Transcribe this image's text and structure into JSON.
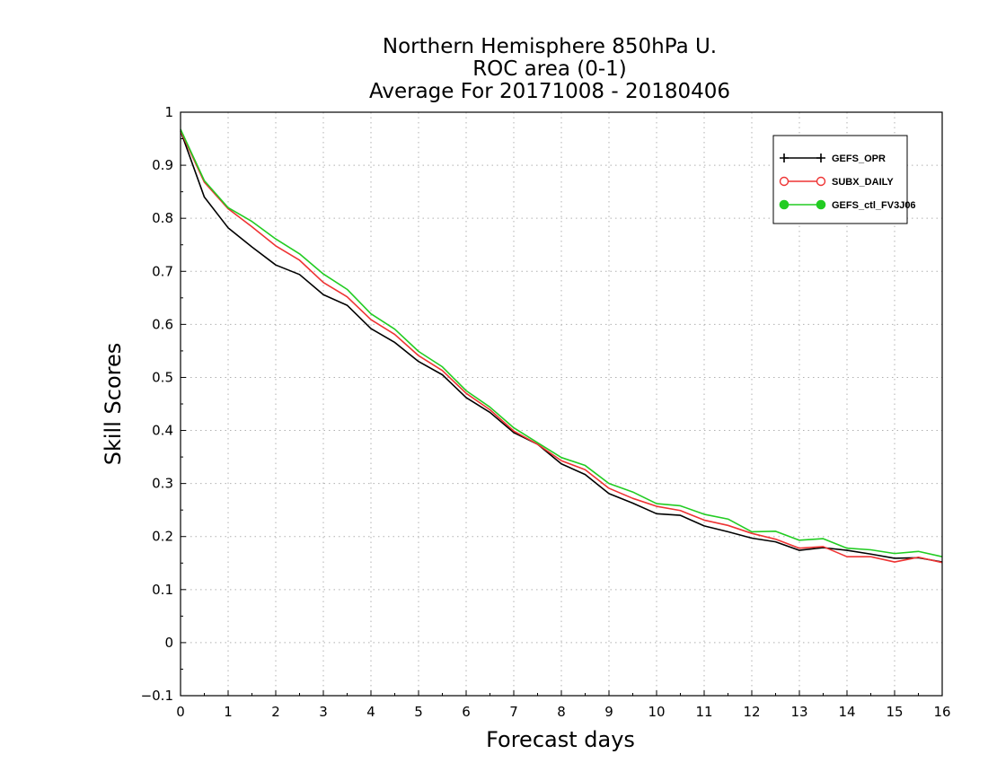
{
  "chart_data": {
    "type": "line",
    "title_lines": [
      "Northern Hemisphere 850hPa U.",
      "ROC area (0-1)",
      "Average For 20171008 - 20180406"
    ],
    "xlabel": "Forecast days",
    "ylabel": "Skill Scores",
    "xlim": [
      0,
      16
    ],
    "ylim": [
      -0.1,
      1
    ],
    "x_ticks": [
      0,
      1,
      2,
      3,
      4,
      5,
      6,
      7,
      8,
      9,
      10,
      11,
      12,
      13,
      14,
      15,
      16
    ],
    "y_ticks": [
      -0.1,
      0,
      0.1,
      0.2,
      0.3,
      0.4,
      0.5,
      0.6,
      0.7,
      0.8,
      0.9,
      1
    ],
    "y_tick_labels": [
      "−0.1",
      "0",
      "0.1",
      "0.2",
      "0.3",
      "0.4",
      "0.5",
      "0.6",
      "0.7",
      "0.8",
      "0.9",
      "1"
    ],
    "grid": true,
    "legend_position": "top-right",
    "x": [
      0,
      0.5,
      1,
      1.5,
      2,
      2.5,
      3,
      3.5,
      4,
      4.5,
      5,
      5.5,
      6,
      6.5,
      7,
      7.5,
      8,
      8.5,
      9,
      9.5,
      10,
      10.5,
      11,
      11.5,
      12,
      12.5,
      13,
      13.5,
      14,
      14.5,
      15,
      15.5,
      16
    ],
    "series": [
      {
        "name": "GEFS_OPR",
        "color": "#000000",
        "marker": "plus",
        "values": [
          0.965,
          0.84,
          0.782,
          0.746,
          0.712,
          0.694,
          0.656,
          0.636,
          0.592,
          0.566,
          0.53,
          0.505,
          0.462,
          0.434,
          0.396,
          0.374,
          0.337,
          0.317,
          0.281,
          0.263,
          0.243,
          0.24,
          0.22,
          0.209,
          0.197,
          0.19,
          0.174,
          0.179,
          0.174,
          0.167,
          0.159,
          0.16,
          0.152
        ]
      },
      {
        "name": "SUBX_DAILY",
        "color": "#ee3333",
        "marker": "open-circle",
        "values": [
          0.965,
          0.868,
          0.818,
          0.784,
          0.748,
          0.721,
          0.679,
          0.652,
          0.609,
          0.581,
          0.541,
          0.513,
          0.47,
          0.439,
          0.399,
          0.374,
          0.343,
          0.326,
          0.291,
          0.272,
          0.257,
          0.249,
          0.231,
          0.221,
          0.206,
          0.195,
          0.178,
          0.181,
          0.162,
          0.162,
          0.152,
          0.161,
          0.151
        ]
      },
      {
        "name": "GEFS_ctl_FV3J06",
        "color": "#22cc22",
        "marker": "filled-circle",
        "values": [
          0.968,
          0.871,
          0.82,
          0.794,
          0.761,
          0.733,
          0.695,
          0.666,
          0.62,
          0.591,
          0.549,
          0.52,
          0.475,
          0.444,
          0.405,
          0.377,
          0.349,
          0.334,
          0.3,
          0.284,
          0.262,
          0.258,
          0.242,
          0.233,
          0.209,
          0.21,
          0.193,
          0.196,
          0.178,
          0.175,
          0.168,
          0.172,
          0.162
        ]
      }
    ]
  }
}
